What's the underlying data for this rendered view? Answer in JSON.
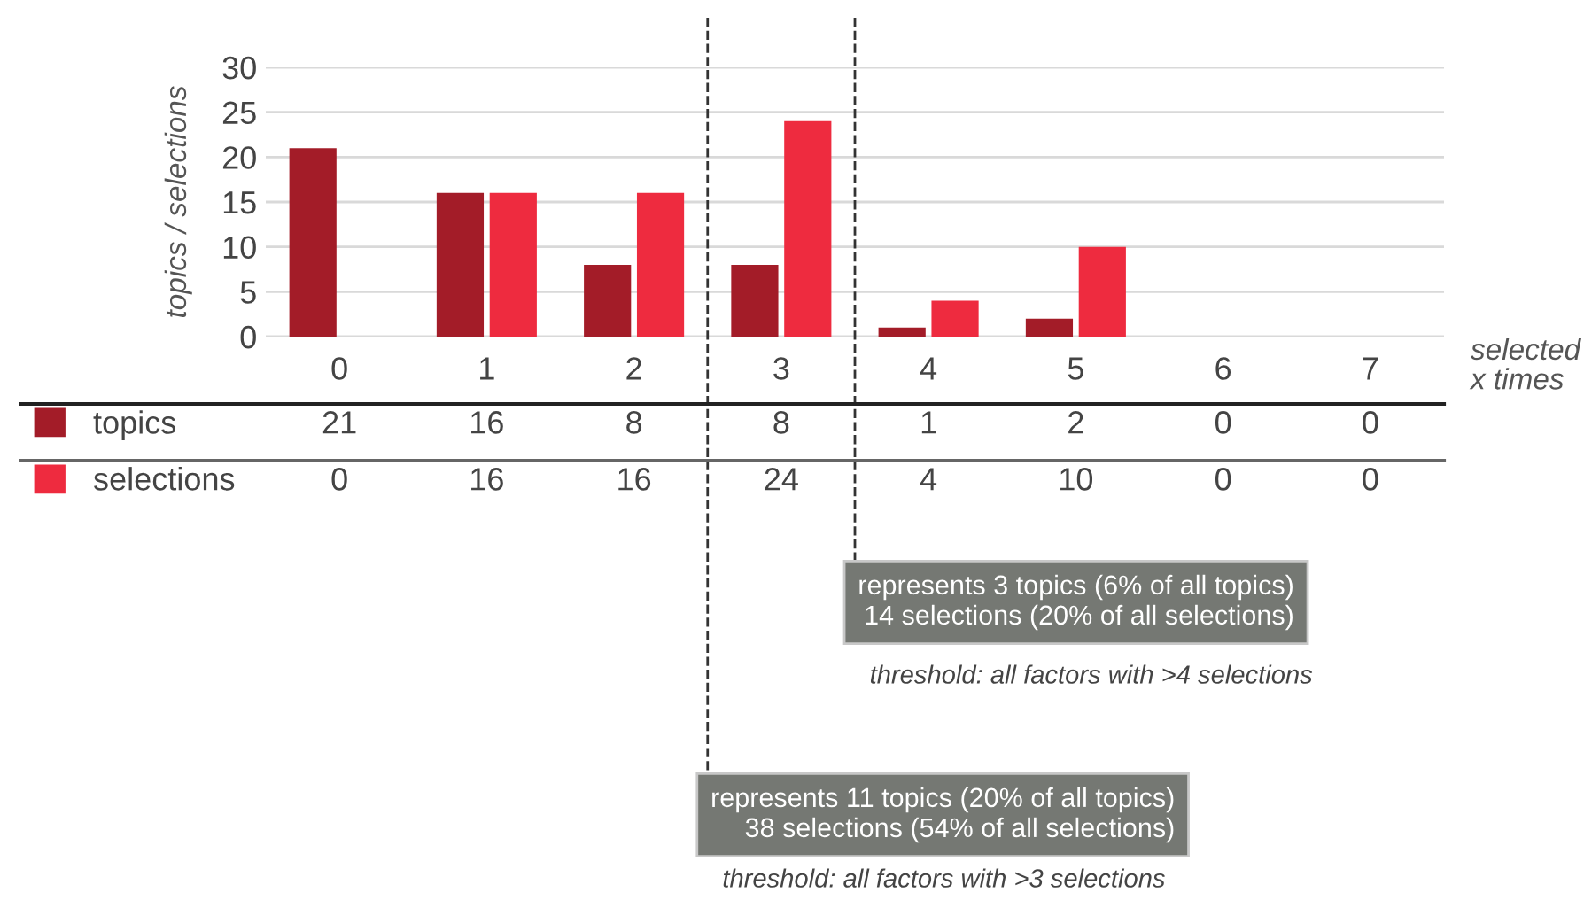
{
  "chart_data": {
    "type": "bar",
    "ylabel": "topics / selections",
    "xlabel": "selected\nx times",
    "categories": [
      "0",
      "1",
      "2",
      "3",
      "4",
      "5",
      "6",
      "7"
    ],
    "series": [
      {
        "name": "topics",
        "color": "#a31c28",
        "values": [
          21,
          16,
          8,
          8,
          1,
          2,
          0,
          0
        ]
      },
      {
        "name": "selections",
        "color": "#ee2b3f",
        "values": [
          0,
          16,
          16,
          24,
          4,
          10,
          0,
          0
        ]
      }
    ],
    "ylim": [
      0,
      30
    ],
    "yticks": [
      0,
      5,
      10,
      15,
      20,
      25,
      30
    ],
    "grid": "y",
    "data_labels": true,
    "legend": "bottom left",
    "annotations": [
      "represents 3 topics (6% of all topics)\n14 selections (20% of all selections)",
      "threshold: all factors with >4 selections",
      "represents 11 topics (20% of all topics)\n38 selections (54% of all selections)",
      "threshold: all factors with >3 selections"
    ]
  }
}
